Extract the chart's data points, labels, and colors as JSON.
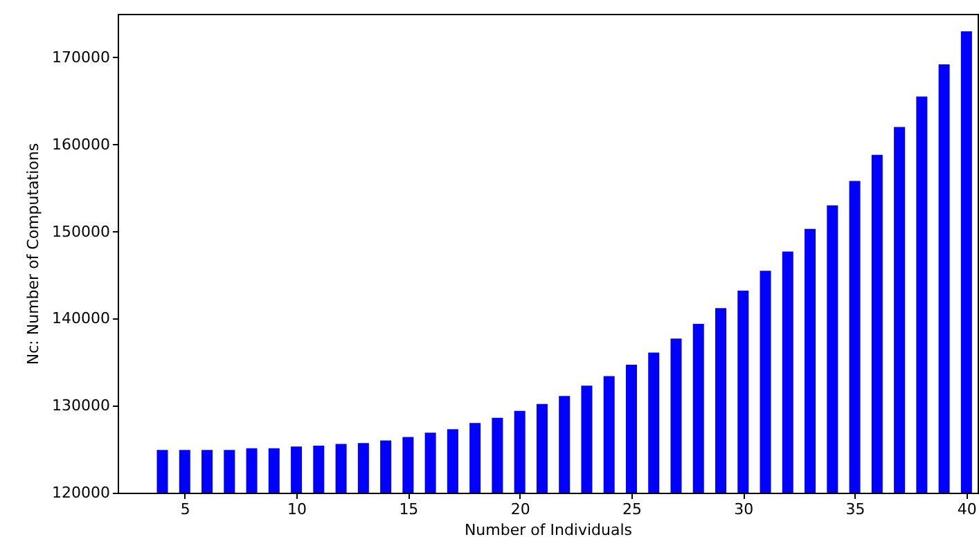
{
  "chart_data": {
    "type": "bar",
    "xlabel": "Number of Individuals",
    "ylabel": "Nc: Number of Computations",
    "x": [
      4,
      5,
      6,
      7,
      8,
      9,
      10,
      11,
      12,
      13,
      14,
      15,
      16,
      17,
      18,
      19,
      20,
      21,
      22,
      23,
      24,
      25,
      26,
      27,
      28,
      29,
      30,
      31,
      32,
      33,
      34,
      35,
      36,
      37,
      38,
      39,
      40
    ],
    "values": [
      124900,
      124900,
      124900,
      124900,
      125100,
      125100,
      125300,
      125400,
      125600,
      125700,
      126000,
      126400,
      126900,
      127300,
      128000,
      128600,
      129400,
      130200,
      131100,
      132300,
      133400,
      134700,
      136100,
      137700,
      139400,
      141200,
      143200,
      145500,
      147700,
      150300,
      153000,
      155800,
      158800,
      162000,
      165500,
      169200,
      173000
    ],
    "color": "#0000ff",
    "xlim": [
      2,
      40.5
    ],
    "xticks": [
      5,
      10,
      15,
      20,
      25,
      30,
      35,
      40
    ],
    "ylim": [
      120000,
      175000
    ],
    "yticks": [
      120000,
      130000,
      140000,
      150000,
      160000,
      170000
    ],
    "grid": false
  }
}
